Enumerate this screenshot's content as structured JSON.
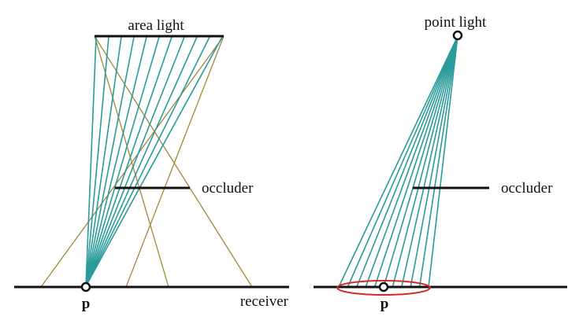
{
  "left_panel": {
    "light_label": "area light",
    "occluder_label": "occluder",
    "point_label": "p",
    "receiver_label": "receiver"
  },
  "right_panel": {
    "light_label": "point light",
    "occluder_label": "occluder",
    "point_label": "p"
  },
  "colors": {
    "ray": "#2a9a9a",
    "penumbra_line": "#a08838",
    "ellipse": "#d42a2a",
    "line": "#111111"
  },
  "ray_count": 11
}
